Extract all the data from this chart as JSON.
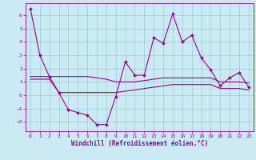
{
  "xlabel": "Windchill (Refroidissement éolien,°C)",
  "bg_color": "#c8eaf0",
  "grid_color": "#a0c8d8",
  "line_color": "#990099",
  "xlim": [
    -0.5,
    23.5
  ],
  "ylim": [
    -2.7,
    6.9
  ],
  "yticks": [
    -2,
    -1,
    0,
    1,
    2,
    3,
    4,
    5,
    6
  ],
  "xticks": [
    0,
    1,
    2,
    3,
    4,
    5,
    6,
    7,
    8,
    9,
    10,
    11,
    12,
    13,
    14,
    15,
    16,
    17,
    18,
    19,
    20,
    21,
    22,
    23
  ],
  "line1_x": [
    0,
    1,
    2,
    3,
    4,
    5,
    6,
    7,
    8,
    9,
    10,
    11,
    12,
    13,
    14,
    15,
    16,
    17,
    18,
    19,
    20,
    21,
    22,
    23
  ],
  "line1_y": [
    6.5,
    3.0,
    1.4,
    0.2,
    -1.1,
    -1.3,
    -1.5,
    -2.2,
    -2.2,
    -0.1,
    2.5,
    1.5,
    1.5,
    4.3,
    3.9,
    6.1,
    4.0,
    4.5,
    2.8,
    1.9,
    0.7,
    1.3,
    1.7,
    0.6
  ],
  "line2_x": [
    0,
    1,
    2,
    3,
    4,
    5,
    6,
    7,
    8,
    9,
    10,
    11,
    12,
    13,
    14,
    15,
    16,
    17,
    18,
    19,
    20,
    21,
    22,
    23
  ],
  "line2_y": [
    1.4,
    1.4,
    1.4,
    1.4,
    1.4,
    1.4,
    1.4,
    1.3,
    1.2,
    1.0,
    1.0,
    1.0,
    1.1,
    1.2,
    1.3,
    1.3,
    1.3,
    1.3,
    1.3,
    1.3,
    1.0,
    1.0,
    1.0,
    0.9
  ],
  "line3_x": [
    0,
    1,
    2,
    3,
    4,
    5,
    6,
    7,
    8,
    9,
    10,
    11,
    12,
    13,
    14,
    15,
    16,
    17,
    18,
    19,
    20,
    21,
    22,
    23
  ],
  "line3_y": [
    1.2,
    1.2,
    1.2,
    0.2,
    0.2,
    0.2,
    0.2,
    0.2,
    0.2,
    0.2,
    0.3,
    0.4,
    0.5,
    0.6,
    0.7,
    0.8,
    0.8,
    0.8,
    0.8,
    0.8,
    0.5,
    0.5,
    0.5,
    0.4
  ],
  "tick_fontsize": 4.5,
  "xlabel_fontsize": 5.5
}
